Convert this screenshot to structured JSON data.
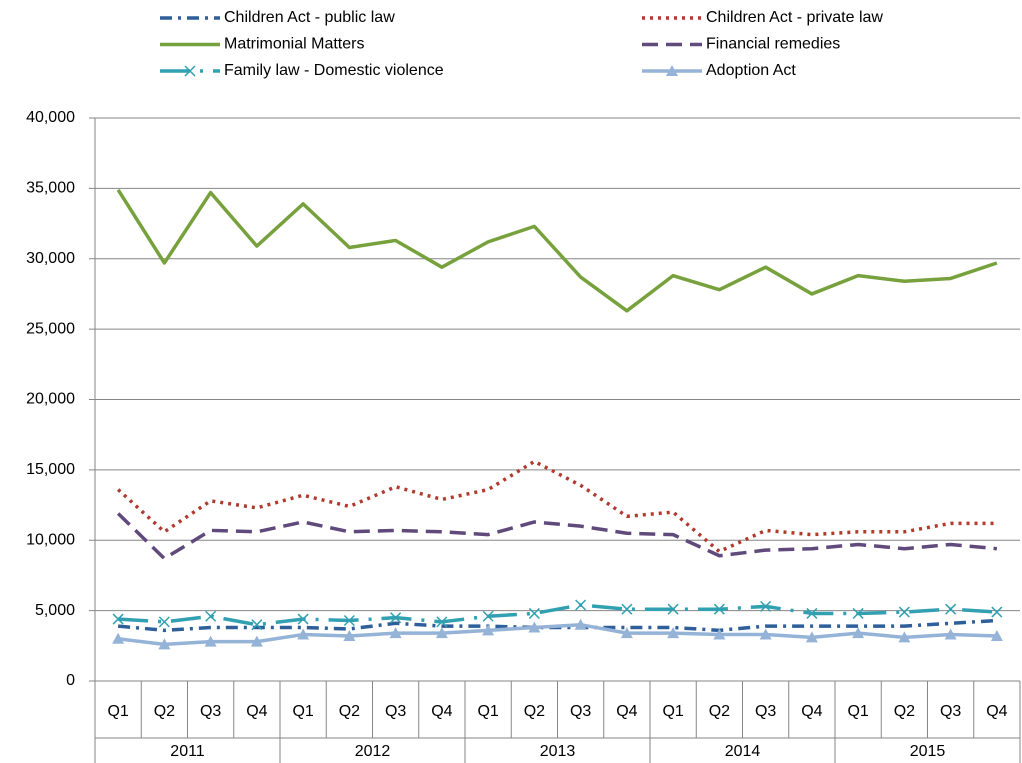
{
  "chart_data": {
    "type": "line",
    "categories": [
      "Q1",
      "Q2",
      "Q3",
      "Q4",
      "Q1",
      "Q2",
      "Q3",
      "Q4",
      "Q1",
      "Q2",
      "Q3",
      "Q4",
      "Q1",
      "Q2",
      "Q3",
      "Q4",
      "Q1",
      "Q2",
      "Q3",
      "Q4"
    ],
    "groups": [
      "2011",
      "2012",
      "2013",
      "2014",
      "2015"
    ],
    "ylim": [
      0,
      40000
    ],
    "yticks": [
      0,
      {
        "value": 5000,
        "label": "5,000"
      },
      {
        "value": 10000,
        "label": "10,000"
      },
      {
        "value": 15000,
        "label": "15,000"
      },
      {
        "value": 20000,
        "label": "20,000"
      },
      {
        "value": 25000,
        "label": "25,000"
      },
      {
        "value": 30000,
        "label": "30,000"
      },
      {
        "value": 35000,
        "label": "35,000"
      },
      {
        "value": 40000,
        "label": "40,000"
      }
    ],
    "grid": true,
    "series": [
      {
        "name": "Children Act - public law",
        "color": "#2e5f9a",
        "dash": "12,6,3,6",
        "values": [
          3900,
          3600,
          3800,
          3800,
          3800,
          3700,
          4100,
          3900,
          3900,
          3800,
          3800,
          3800,
          3800,
          3600,
          3900,
          3900,
          3900,
          3900,
          4100,
          4300
        ]
      },
      {
        "name": "Children Act - private law",
        "color": "#b03a2e",
        "dash": "3,5",
        "values": [
          13600,
          10600,
          12800,
          12300,
          13200,
          12400,
          13800,
          12900,
          13600,
          15600,
          13900,
          11700,
          12000,
          9200,
          10700,
          10400,
          10600,
          10600,
          11200,
          11200
        ]
      },
      {
        "name": "Matrimonial Matters",
        "color": "#77a13c",
        "dash": "none",
        "values": [
          34900,
          29700,
          34700,
          30900,
          33900,
          30800,
          31300,
          29400,
          31200,
          32300,
          28700,
          26300,
          28800,
          27800,
          29400,
          27500,
          28800,
          28400,
          28600,
          29700
        ]
      },
      {
        "name": "Financial remedies",
        "color": "#604a7b",
        "dash": "16,8",
        "values": [
          11900,
          8700,
          10700,
          10600,
          11300,
          10600,
          10700,
          10600,
          10400,
          11300,
          11000,
          10500,
          10400,
          8900,
          9300,
          9400,
          9700,
          9400,
          9700,
          9400
        ]
      },
      {
        "name": "Family law - Domestic violence",
        "color": "#31a0b0",
        "dash": "30,10,3,10",
        "marker": "x",
        "values": [
          4400,
          4200,
          4600,
          4000,
          4400,
          4300,
          4500,
          4200,
          4600,
          4800,
          5400,
          5100,
          5100,
          5100,
          5300,
          4800,
          4800,
          4900,
          5100,
          4900
        ]
      },
      {
        "name": "Adoption Act",
        "color": "#95b3d7",
        "dash": "none",
        "marker": "triangle",
        "values": [
          3000,
          2600,
          2800,
          2800,
          3300,
          3200,
          3400,
          3400,
          3600,
          3800,
          4000,
          3400,
          3400,
          3300,
          3300,
          3100,
          3400,
          3100,
          3300,
          3200
        ]
      }
    ]
  }
}
